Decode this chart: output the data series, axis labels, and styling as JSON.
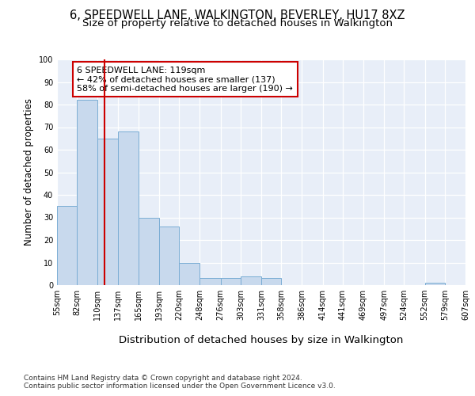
{
  "title1": "6, SPEEDWELL LANE, WALKINGTON, BEVERLEY, HU17 8XZ",
  "title2": "Size of property relative to detached houses in Walkington",
  "xlabel": "Distribution of detached houses by size in Walkington",
  "ylabel": "Number of detached properties",
  "footnote1": "Contains HM Land Registry data © Crown copyright and database right 2024.",
  "footnote2": "Contains public sector information licensed under the Open Government Licence v3.0.",
  "bar_edges": [
    55,
    82,
    110,
    137,
    165,
    193,
    220,
    248,
    276,
    303,
    331,
    358,
    386,
    414,
    441,
    469,
    497,
    524,
    552,
    579,
    607
  ],
  "bar_heights": [
    35,
    82,
    65,
    68,
    30,
    26,
    10,
    3,
    3,
    4,
    3,
    0,
    0,
    0,
    0,
    0,
    0,
    0,
    1,
    0,
    0
  ],
  "bar_color": "#c8d9ed",
  "bar_edge_color": "#7aadd4",
  "property_size": 119,
  "vline_color": "#cc0000",
  "annotation_text": "6 SPEEDWELL LANE: 119sqm\n← 42% of detached houses are smaller (137)\n58% of semi-detached houses are larger (190) →",
  "annotation_box_color": "#cc0000",
  "background_color": "#e8eef8",
  "ylim": [
    0,
    100
  ],
  "yticks": [
    0,
    10,
    20,
    30,
    40,
    50,
    60,
    70,
    80,
    90,
    100
  ],
  "grid_color": "#ffffff",
  "title_fontsize": 10.5,
  "subtitle_fontsize": 9.5,
  "ylabel_fontsize": 8.5,
  "xlabel_fontsize": 9.5,
  "tick_fontsize": 7,
  "annotation_fontsize": 8,
  "footnote_fontsize": 6.5
}
